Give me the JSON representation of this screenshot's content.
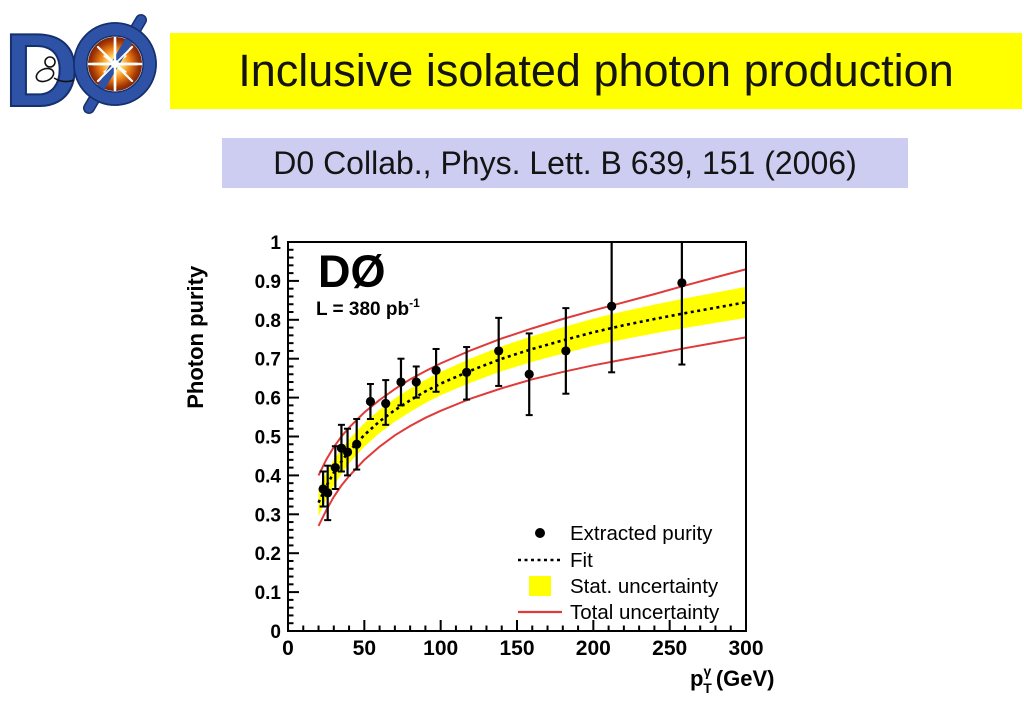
{
  "logo": {
    "letter_d": "D",
    "letter_o_slashed": "Ø",
    "alt": "D0 experiment logo",
    "blue": "#2d52a6",
    "navy": "#16306e",
    "orange": "#e87818"
  },
  "header": {
    "title": "Inclusive isolated photon production",
    "bg": "#ffff00",
    "text_color": "#141414"
  },
  "citation": {
    "text": "D0 Collab., Phys. Lett. B 639, 151 (2006)",
    "bg": "#cdcdf2",
    "text_color": "#141414"
  },
  "chart_data": {
    "type": "scatter",
    "experiment_label": "DØ",
    "luminosity": {
      "text": "L = 380 pb",
      "exponent": "-1"
    },
    "xlabel": {
      "base": "p",
      "sup": "γ",
      "sub": "T",
      "unit": "(GeV)"
    },
    "ylabel": "Photon purity",
    "xlim": [
      0,
      300
    ],
    "ylim": [
      0,
      1
    ],
    "x_ticks": [
      0,
      50,
      100,
      150,
      200,
      250,
      300
    ],
    "x_minor_step": 10,
    "y_ticks": [
      0,
      0.1,
      0.2,
      0.3,
      0.4,
      0.5,
      0.6,
      0.7,
      0.8,
      0.9,
      1
    ],
    "y_tick_labels": [
      "0",
      "0.1",
      "0.2",
      "0.3",
      "0.4",
      "0.5",
      "0.6",
      "0.7",
      "0.8",
      "0.9",
      "1"
    ],
    "y_minor_step": 0.02,
    "grid": false,
    "legend_position": "lower right",
    "legend": [
      {
        "marker": "dot",
        "label": "Extracted purity"
      },
      {
        "marker": "dashed-line",
        "label": "Fit"
      },
      {
        "marker": "yellow-box",
        "label": "Stat. uncertainty"
      },
      {
        "marker": "red-line",
        "label": "Total uncertainty"
      }
    ],
    "series": [
      {
        "name": "Extracted purity",
        "points": [
          {
            "x": 23,
            "y": 0.365,
            "lo": 0.32,
            "hi": 0.41
          },
          {
            "x": 26,
            "y": 0.355,
            "lo": 0.285,
            "hi": 0.425
          },
          {
            "x": 31,
            "y": 0.42,
            "lo": 0.365,
            "hi": 0.475
          },
          {
            "x": 35,
            "y": 0.47,
            "lo": 0.41,
            "hi": 0.53
          },
          {
            "x": 39,
            "y": 0.46,
            "lo": 0.4,
            "hi": 0.52
          },
          {
            "x": 45,
            "y": 0.48,
            "lo": 0.415,
            "hi": 0.545
          },
          {
            "x": 54,
            "y": 0.59,
            "lo": 0.545,
            "hi": 0.635
          },
          {
            "x": 64,
            "y": 0.585,
            "lo": 0.53,
            "hi": 0.645
          },
          {
            "x": 74,
            "y": 0.64,
            "lo": 0.58,
            "hi": 0.7
          },
          {
            "x": 84,
            "y": 0.64,
            "lo": 0.6,
            "hi": 0.68
          },
          {
            "x": 97,
            "y": 0.67,
            "lo": 0.615,
            "hi": 0.725
          },
          {
            "x": 117,
            "y": 0.665,
            "lo": 0.595,
            "hi": 0.73
          },
          {
            "x": 138,
            "y": 0.72,
            "lo": 0.63,
            "hi": 0.805
          },
          {
            "x": 158,
            "y": 0.66,
            "lo": 0.555,
            "hi": 0.765
          },
          {
            "x": 182,
            "y": 0.72,
            "lo": 0.61,
            "hi": 0.83
          },
          {
            "x": 212,
            "y": 0.835,
            "lo": 0.665,
            "hi": 1.0
          },
          {
            "x": 258,
            "y": 0.895,
            "lo": 0.685,
            "hi": 1.0
          }
        ]
      }
    ],
    "fit": {
      "x": [
        20,
        25,
        30,
        35,
        40,
        50,
        60,
        70,
        80,
        90,
        100,
        120,
        140,
        160,
        180,
        200,
        220,
        240,
        260,
        280,
        300
      ],
      "y": [
        0.33,
        0.372,
        0.407,
        0.436,
        0.462,
        0.504,
        0.539,
        0.568,
        0.593,
        0.616,
        0.636,
        0.67,
        0.7,
        0.725,
        0.747,
        0.768,
        0.786,
        0.802,
        0.817,
        0.831,
        0.845
      ]
    },
    "stat_band": {
      "lo": [
        0.295,
        0.338,
        0.374,
        0.404,
        0.431,
        0.474,
        0.509,
        0.538,
        0.563,
        0.586,
        0.606,
        0.639,
        0.668,
        0.692,
        0.713,
        0.733,
        0.75,
        0.765,
        0.779,
        0.792,
        0.805
      ],
      "hi": [
        0.365,
        0.406,
        0.44,
        0.468,
        0.493,
        0.534,
        0.569,
        0.598,
        0.623,
        0.646,
        0.666,
        0.701,
        0.732,
        0.758,
        0.781,
        0.803,
        0.822,
        0.839,
        0.855,
        0.87,
        0.885
      ]
    },
    "total_uncertainty": {
      "lo": [
        0.27,
        0.31,
        0.345,
        0.374,
        0.398,
        0.44,
        0.474,
        0.503,
        0.527,
        0.548,
        0.566,
        0.598,
        0.624,
        0.647,
        0.666,
        0.683,
        0.698,
        0.712,
        0.727,
        0.741,
        0.755
      ],
      "hi": [
        0.4,
        0.44,
        0.473,
        0.5,
        0.523,
        0.562,
        0.594,
        0.622,
        0.647,
        0.668,
        0.688,
        0.722,
        0.752,
        0.778,
        0.802,
        0.824,
        0.845,
        0.866,
        0.888,
        0.909,
        0.93
      ]
    },
    "colors": {
      "points": "#000000",
      "fit": "#000000",
      "stat_band": "#ffff00",
      "total_uncertainty": "#e03a3a",
      "frame": "#000000"
    }
  }
}
